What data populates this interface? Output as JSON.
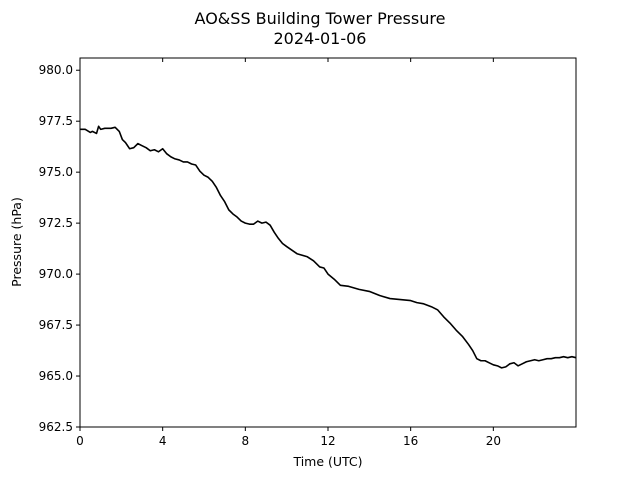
{
  "chart_data": {
    "type": "line",
    "title": "AO&SS Building Tower Pressure",
    "subtitle": "2024-01-06",
    "xlabel": "Time (UTC)",
    "ylabel": "Pressure (hPa)",
    "xlim": [
      0,
      24
    ],
    "ylim": [
      962.5,
      980.6
    ],
    "x_ticks": [
      0,
      4,
      8,
      12,
      16,
      20
    ],
    "x_tick_labels": [
      "0",
      "4",
      "8",
      "12",
      "16",
      "20"
    ],
    "y_ticks": [
      962.5,
      965.0,
      967.5,
      970.0,
      972.5,
      975.0,
      977.5,
      980.0
    ],
    "y_tick_labels": [
      "962.5",
      "965.0",
      "967.5",
      "970.0",
      "972.5",
      "975.0",
      "977.5",
      "980.0"
    ],
    "grid": false,
    "line_color": "#000000",
    "series": [
      {
        "x": [
          0.0,
          0.25,
          0.5,
          0.6,
          0.8,
          0.9,
          1.0,
          1.2,
          1.5,
          1.7,
          1.9,
          2.05,
          2.2,
          2.4,
          2.6,
          2.8,
          3.0,
          3.2,
          3.4,
          3.6,
          3.8,
          4.0,
          4.2,
          4.4,
          4.6,
          4.8,
          5.0,
          5.2,
          5.4,
          5.6,
          5.8,
          6.0,
          6.2,
          6.4,
          6.6,
          6.8,
          7.0,
          7.2,
          7.4,
          7.6,
          7.8,
          8.0,
          8.2,
          8.4,
          8.6,
          8.8,
          9.0,
          9.2,
          9.4,
          9.6,
          9.8,
          10.0,
          10.5,
          11.0,
          11.3,
          11.6,
          11.8,
          12.0,
          12.3,
          12.6,
          13.0,
          13.5,
          14.0,
          14.5,
          15.0,
          15.5,
          16.0,
          16.3,
          16.6,
          17.0,
          17.3,
          17.6,
          17.9,
          18.2,
          18.5,
          18.8,
          19.0,
          19.2,
          19.4,
          19.6,
          19.8,
          20.0,
          20.2,
          20.4,
          20.6,
          20.8,
          21.0,
          21.2,
          21.4,
          21.6,
          21.8,
          22.0,
          22.2,
          22.4,
          22.6,
          22.8,
          23.0,
          23.2,
          23.4,
          23.6,
          23.8,
          24.0
        ],
        "y": [
          977.1,
          977.1,
          976.95,
          977.0,
          976.9,
          977.25,
          977.1,
          977.15,
          977.15,
          977.2,
          977.0,
          976.6,
          976.45,
          976.15,
          976.2,
          976.4,
          976.3,
          976.2,
          976.05,
          976.1,
          976.0,
          976.15,
          975.9,
          975.75,
          975.65,
          975.6,
          975.5,
          975.5,
          975.4,
          975.35,
          975.05,
          974.85,
          974.75,
          974.55,
          974.25,
          973.85,
          973.55,
          973.15,
          972.95,
          972.8,
          972.6,
          972.5,
          972.45,
          972.45,
          972.6,
          972.5,
          972.55,
          972.4,
          972.05,
          971.75,
          971.5,
          971.35,
          971.0,
          970.85,
          970.65,
          970.35,
          970.3,
          970.0,
          969.75,
          969.45,
          969.4,
          969.25,
          969.15,
          968.95,
          968.8,
          968.75,
          968.7,
          968.6,
          968.55,
          968.4,
          968.25,
          967.9,
          967.6,
          967.25,
          966.95,
          966.55,
          966.25,
          965.85,
          965.75,
          965.75,
          965.65,
          965.55,
          965.5,
          965.4,
          965.45,
          965.6,
          965.65,
          965.5,
          965.6,
          965.7,
          965.75,
          965.8,
          965.75,
          965.8,
          965.85,
          965.85,
          965.9,
          965.9,
          965.95,
          965.9,
          965.95,
          965.9
        ]
      }
    ]
  }
}
